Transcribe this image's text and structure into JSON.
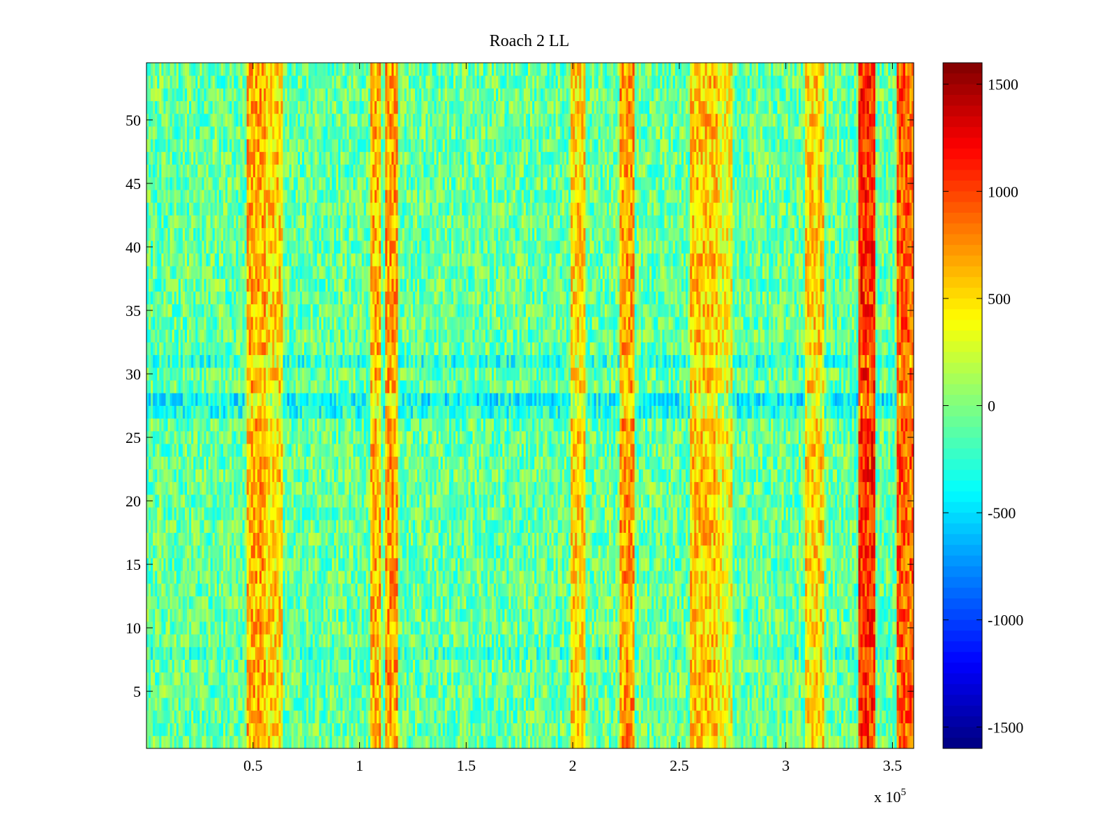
{
  "chart_data": {
    "type": "heatmap",
    "title": "Roach 2 LL",
    "xlabel": "",
    "ylabel": "",
    "x_multiplier_label": "x 10",
    "x_multiplier_exponent": "5",
    "xlim": [
      0,
      360000
    ],
    "ylim": [
      0.5,
      54.5
    ],
    "x_ticks": [
      {
        "value": 0.5,
        "label": "0.5"
      },
      {
        "value": 1,
        "label": "1"
      },
      {
        "value": 1.5,
        "label": "1.5"
      },
      {
        "value": 2,
        "label": "2"
      },
      {
        "value": 2.5,
        "label": "2.5"
      },
      {
        "value": 3,
        "label": "3"
      },
      {
        "value": 3.5,
        "label": "3.5"
      }
    ],
    "y_ticks": [
      {
        "value": 5,
        "label": "5"
      },
      {
        "value": 10,
        "label": "10"
      },
      {
        "value": 15,
        "label": "15"
      },
      {
        "value": 20,
        "label": "20"
      },
      {
        "value": 25,
        "label": "25"
      },
      {
        "value": 30,
        "label": "30"
      },
      {
        "value": 35,
        "label": "35"
      },
      {
        "value": 40,
        "label": "40"
      },
      {
        "value": 45,
        "label": "45"
      },
      {
        "value": 50,
        "label": "50"
      }
    ],
    "colorbar": {
      "colormap": "jet",
      "clim": [
        -1600,
        1600
      ],
      "ticks": [
        {
          "value": 1500,
          "label": "1500"
        },
        {
          "value": 1000,
          "label": "1000"
        },
        {
          "value": 500,
          "label": "500"
        },
        {
          "value": 0,
          "label": "0"
        },
        {
          "value": -500,
          "label": "-500"
        },
        {
          "value": -1000,
          "label": "-1000"
        },
        {
          "value": -1500,
          "label": "-1500"
        }
      ]
    },
    "rows": 54,
    "base_value": -80,
    "noise_amplitude": 320,
    "bands": [
      {
        "x_start": 47000,
        "x_end": 56000,
        "value": 650
      },
      {
        "x_start": 56000,
        "x_end": 64000,
        "value": 520
      },
      {
        "x_start": 105000,
        "x_end": 110000,
        "value": 620
      },
      {
        "x_start": 112000,
        "x_end": 118000,
        "value": 700
      },
      {
        "x_start": 199000,
        "x_end": 206000,
        "value": 520
      },
      {
        "x_start": 222000,
        "x_end": 229000,
        "value": 720
      },
      {
        "x_start": 255000,
        "x_end": 268000,
        "value": 560
      },
      {
        "x_start": 268000,
        "x_end": 275000,
        "value": 380
      },
      {
        "x_start": 309000,
        "x_end": 318000,
        "value": 520
      },
      {
        "x_start": 334000,
        "x_end": 342000,
        "value": 1050
      },
      {
        "x_start": 352000,
        "x_end": 360000,
        "value": 900
      }
    ],
    "row_offsets": [
      {
        "row": 27,
        "value": -220
      },
      {
        "row": 28,
        "value": -320
      },
      {
        "row": 31,
        "value": -200
      },
      {
        "row": 8,
        "value": -120
      }
    ]
  }
}
